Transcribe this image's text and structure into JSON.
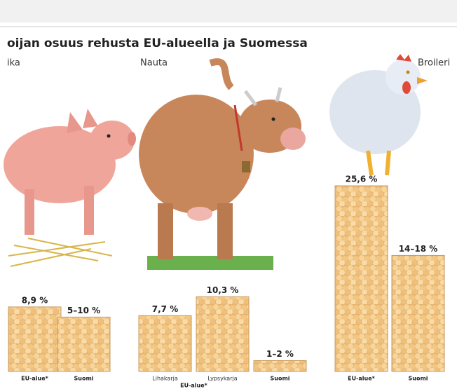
{
  "chart_data": {
    "type": "bar",
    "title": "oijan osuus rehusta EU-alueella ja Suomessa",
    "groups": [
      {
        "name": "ika",
        "categories": [
          "EU-alue*",
          "Suomi"
        ],
        "values": [
          8.9,
          7.5
        ],
        "value_labels": [
          "8,9 %",
          "5–10 %"
        ]
      },
      {
        "name": "Nauta",
        "categories": [
          "Lihakarja",
          "Lypsykarja",
          "Suomi"
        ],
        "subgroup": "EU-alue*",
        "values": [
          7.7,
          10.3,
          1.5
        ],
        "value_labels": [
          "7,7 %",
          "10,3 %",
          "1–2 %"
        ]
      },
      {
        "name": "Broileri",
        "categories": [
          "EU-alue*",
          "Suomi"
        ],
        "values": [
          25.6,
          16
        ],
        "value_labels": [
          "25,6 %",
          "14–18 %"
        ]
      }
    ]
  }
}
